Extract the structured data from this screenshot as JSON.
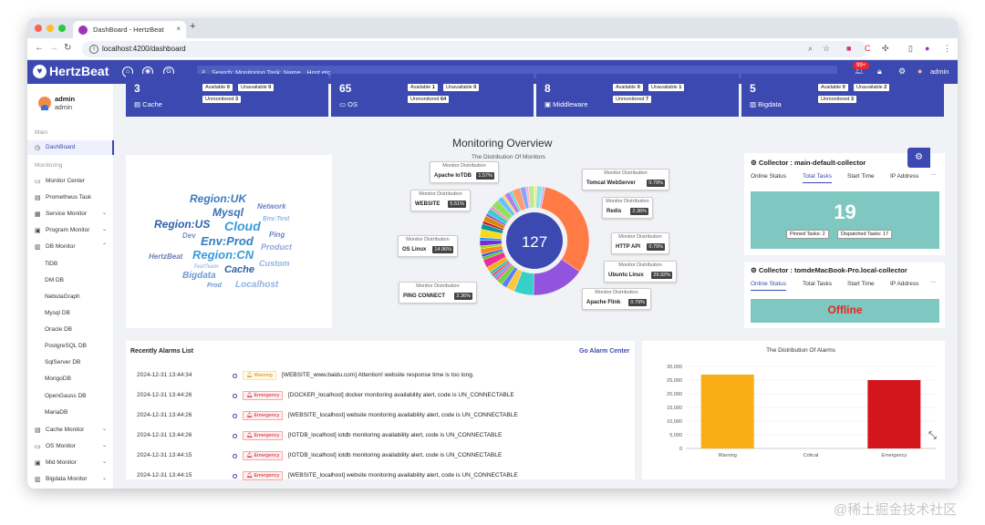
{
  "browser": {
    "tab_title": "DashBoard - HertzBeat",
    "url": "localhost:4200/dashboard",
    "new_tab": "+",
    "tab_close": "×"
  },
  "header": {
    "logo": "HertzBeat",
    "search_placeholder": "Search:  Monitoring Task: Name、Host etc",
    "notify_badge": "99+",
    "user": "admin"
  },
  "sidebar": {
    "user_name": "admin",
    "user_role": "admin",
    "section_main": "Main",
    "section_monitoring": "Monitoring",
    "dashboard": "DashBoard",
    "items": [
      {
        "label": "Monitor Center"
      },
      {
        "label": "Prometheus Task"
      },
      {
        "label": "Service Monitor"
      },
      {
        "label": "Program Monitor"
      },
      {
        "label": "DB Monitor"
      }
    ],
    "db_children": [
      "TiDB",
      "DM DB",
      "NebulaGraph",
      "Mysql DB",
      "Oracle DB",
      "PostgreSQL DB",
      "SqlServer DB",
      "MongoDB",
      "OpenGauss DB",
      "MariaDB"
    ],
    "bottom_items": [
      {
        "label": "Cache Monitor"
      },
      {
        "label": "OS Monitor"
      },
      {
        "label": "Mid Monitor"
      },
      {
        "label": "Bigdata Monitor"
      }
    ]
  },
  "cards": [
    {
      "num": "3",
      "label": "Cache",
      "available_label": "Available",
      "available": "0",
      "unavailable_label": "Unavailable",
      "unavailable": "0",
      "unmonitored_label": "Unmonitored",
      "unmonitored": "3"
    },
    {
      "num": "65",
      "label": "OS",
      "available_label": "Available",
      "available": "1",
      "unavailable_label": "Unavailable",
      "unavailable": "0",
      "unmonitored_label": "Unmonitored",
      "unmonitored": "64"
    },
    {
      "num": "8",
      "label": "Middleware",
      "available_label": "Available",
      "available": "0",
      "unavailable_label": "Unavailable",
      "unavailable": "1",
      "unmonitored_label": "Unmonitored",
      "unmonitored": "7"
    },
    {
      "num": "5",
      "label": "Bigdata",
      "available_label": "Available",
      "available": "0",
      "unavailable_label": "Unavailable",
      "unavailable": "2",
      "unmonitored_label": "Unmonitored",
      "unmonitored": "3"
    }
  ],
  "wordcloud": [
    "Region:UK",
    "Network",
    "Mysql",
    "Env:Test",
    "Region:US",
    "Cloud",
    "Dev",
    "Ping",
    "Env:Prod",
    "Product",
    "HertzBeat",
    "Region:CN",
    "Custom",
    "TestTeam",
    "Cache",
    "Bigdata",
    "Prod",
    "Localhost"
  ],
  "overview": {
    "title": "Monitoring Overview",
    "subtitle": "The Distribution Of Monitors",
    "total": "127",
    "tip_header": "Monitor Distribution",
    "tips": [
      {
        "name": "Apache IoTDB",
        "pct": "1.57%"
      },
      {
        "name": "Tomcat WebServer",
        "pct": "0.79%"
      },
      {
        "name": "WEBSITE",
        "pct": "5.51%"
      },
      {
        "name": "Redis",
        "pct": "2.36%"
      },
      {
        "name": "OS Linux",
        "pct": "14.96%"
      },
      {
        "name": "HTTP API",
        "pct": "0.79%"
      },
      {
        "name": "Ubuntu Linux",
        "pct": "29.92%"
      },
      {
        "name": "PING CONNECT",
        "pct": "2.36%"
      },
      {
        "name": "Apache Flink",
        "pct": "0.79%"
      }
    ]
  },
  "collectors": [
    {
      "title": "Collector : main-default-collector",
      "tabs": [
        "Online Status",
        "Total Tasks",
        "Start Time",
        "IP Address"
      ],
      "active": 1,
      "big": "19",
      "pinned": "Pinned Tasks: 2",
      "dispatched": "Dispatched Tasks: 17"
    },
    {
      "title": "Collector : tomdeMacBook-Pro.local-collector",
      "tabs": [
        "Online Status",
        "Total Tasks",
        "Start Time",
        "IP Address"
      ],
      "active": 0,
      "status": "Offline"
    }
  ],
  "alarms": {
    "title": "Recently Alarms List",
    "link": "Go Alarm Center",
    "rows": [
      {
        "time": "2024-12-31 13:44:34",
        "level": "Warning",
        "type": "warn",
        "msg": "[WEBSITE_www.baidu.com] Attention! website response time is too long."
      },
      {
        "time": "2024-12-31 13:44:26",
        "level": "Emergency",
        "type": "emg",
        "msg": "[DOCKER_localhost] docker monitoring availability alert, code is UN_CONNECTABLE"
      },
      {
        "time": "2024-12-31 13:44:26",
        "level": "Emergency",
        "type": "emg",
        "msg": "[WEBSITE_localhost] website monitoring availability alert, code is UN_CONNECTABLE"
      },
      {
        "time": "2024-12-31 13:44:26",
        "level": "Emergency",
        "type": "emg",
        "msg": "[IOTDB_localhost] iotdb monitoring availability alert, code is UN_CONNECTABLE"
      },
      {
        "time": "2024-12-31 13:44:15",
        "level": "Emergency",
        "type": "emg",
        "msg": "[IOTDB_localhost] iotdb monitoring availability alert, code is UN_CONNECTABLE"
      },
      {
        "time": "2024-12-31 13:44:15",
        "level": "Emergency",
        "type": "emg",
        "msg": "[WEBSITE_localhost] website monitoring availability alert, code is UN_CONNECTABLE"
      }
    ]
  },
  "chart_data": {
    "type": "bar",
    "title": "The Distribution Of Alarms",
    "categories": [
      "Warning",
      "Critical",
      "Emergency"
    ],
    "values": [
      27000,
      0,
      25000
    ],
    "colors": [
      "#faad14",
      "#ff7a45",
      "#d4161c"
    ],
    "yticks": [
      "0",
      "5,000",
      "10,000",
      "15,000",
      "20,000",
      "25,000",
      "30,000"
    ],
    "ylim": [
      0,
      30000
    ]
  },
  "watermark": "@稀土掘金技术社区"
}
